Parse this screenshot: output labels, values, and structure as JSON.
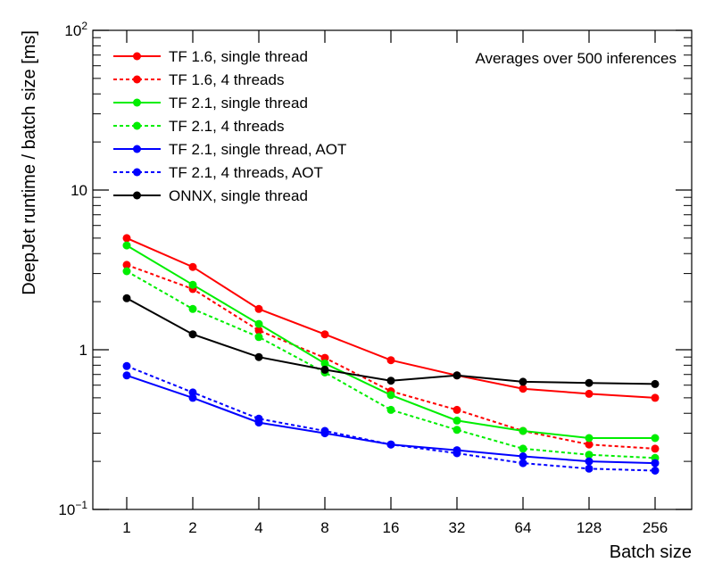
{
  "chart_data": {
    "type": "line",
    "title": "",
    "xlabel": "Batch size",
    "ylabel": "DeepJet runtime / batch size [ms]",
    "yscale": "log",
    "ylim": [
      0.1,
      100
    ],
    "yticks": [
      {
        "value": 0.1,
        "base": "10",
        "exp": "−1"
      },
      {
        "value": 1,
        "label": "1"
      },
      {
        "value": 10,
        "label": "10"
      },
      {
        "value": 100,
        "base": "10",
        "exp": "2"
      }
    ],
    "categories": [
      "1",
      "2",
      "4",
      "8",
      "16",
      "32",
      "64",
      "128",
      "256"
    ],
    "annotation": "Averages over 500 inferences",
    "legend_position": "top-left",
    "series": [
      {
        "name": "TF 1.6, single thread",
        "color": "#ff0000",
        "dashed": false,
        "values": [
          5.0,
          3.3,
          1.8,
          1.25,
          0.86,
          0.69,
          0.57,
          0.53,
          0.5
        ]
      },
      {
        "name": "TF 1.6, 4 threads",
        "color": "#ff0000",
        "dashed": true,
        "values": [
          3.4,
          2.4,
          1.32,
          0.89,
          0.55,
          0.42,
          0.31,
          0.255,
          0.24
        ]
      },
      {
        "name": "TF 2.1, single thread",
        "color": "#00ee00",
        "dashed": false,
        "values": [
          4.5,
          2.55,
          1.45,
          0.82,
          0.52,
          0.36,
          0.31,
          0.28,
          0.28
        ]
      },
      {
        "name": "TF 2.1, 4 threads",
        "color": "#00ee00",
        "dashed": true,
        "values": [
          3.1,
          1.8,
          1.2,
          0.72,
          0.42,
          0.315,
          0.24,
          0.22,
          0.21
        ]
      },
      {
        "name": "TF 2.1, single thread, AOT",
        "color": "#0000ff",
        "dashed": false,
        "values": [
          0.69,
          0.5,
          0.35,
          0.3,
          0.255,
          0.235,
          0.215,
          0.2,
          0.195
        ]
      },
      {
        "name": "TF 2.1, 4 threads, AOT",
        "color": "#0000ff",
        "dashed": true,
        "values": [
          0.79,
          0.54,
          0.37,
          0.31,
          0.255,
          0.225,
          0.195,
          0.18,
          0.175
        ]
      },
      {
        "name": "ONNX, single thread",
        "color": "#000000",
        "dashed": false,
        "values": [
          2.1,
          1.25,
          0.9,
          0.75,
          0.64,
          0.69,
          0.63,
          0.62,
          0.61
        ]
      }
    ]
  }
}
